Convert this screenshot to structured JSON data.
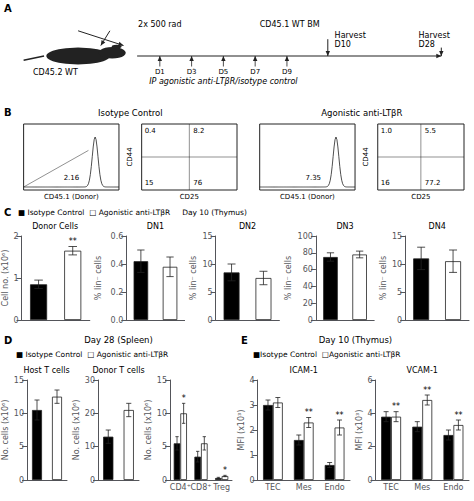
{
  "chart_data": [
    {
      "type": "schematic",
      "annotations": [
        "A",
        "CD45.2 WT",
        "2x 500 rad",
        "CD45.1 WT BM",
        "Harvest",
        "D10",
        "Harvest",
        "D28",
        "D1",
        "D3",
        "D5",
        "D7",
        "D9",
        "IP agonistic anti-LTβR/isotype control"
      ]
    },
    {
      "type": "schematic",
      "annotations": [
        "B",
        "Isotype Control",
        "Agonistic anti-LTβR",
        "2.16",
        "CD45.1 (Donor)",
        "0.4",
        "8.2",
        "15",
        "76",
        "CD44",
        "CD25",
        "7.35",
        "CD45.1 (Donor)",
        "1.0",
        "5.5",
        "16",
        "77.2",
        "CD44",
        "CD25"
      ]
    },
    {
      "type": "bar",
      "title": "Donor Cells",
      "annotations": [
        "C",
        "■ Isotype Control  □ Agonistic anti-LTβR     Day 10 (Thymus)"
      ],
      "categories": [
        null,
        null
      ],
      "values": [
        0.85,
        1.65
      ],
      "errors": [
        0.1,
        0.1
      ],
      "colors": [
        "#000000",
        "#ffffff"
      ],
      "significance": [
        null,
        "**"
      ],
      "ylabel": "Cell no. (x10⁶)",
      "ylim": [
        0,
        2
      ],
      "yticks": [
        0,
        1,
        2
      ],
      "grid": false
    },
    {
      "type": "bar",
      "title": "DN1",
      "categories": [
        null,
        null
      ],
      "values": [
        0.42,
        0.38
      ],
      "errors": [
        0.08,
        0.07
      ],
      "colors": [
        "#000000",
        "#ffffff"
      ],
      "ylabel": "% lin⁻ cells",
      "ylim": [
        0.0,
        0.6
      ],
      "yticks": [
        {
          "value": 0.0,
          "label": "0.0"
        },
        0.2,
        0.4,
        0.6
      ],
      "grid": false
    },
    {
      "type": "bar",
      "title": "DN2",
      "categories": [
        null,
        null
      ],
      "values": [
        8.5,
        7.5
      ],
      "errors": [
        1.5,
        1.2
      ],
      "colors": [
        "#000000",
        "#ffffff"
      ],
      "ylabel": "% lin⁻ cells",
      "ylim": [
        0,
        15
      ],
      "yticks": [
        0,
        5,
        10,
        15
      ],
      "grid": false
    },
    {
      "type": "bar",
      "title": "DN3",
      "categories": [
        null,
        null
      ],
      "values": [
        75,
        78
      ],
      "errors": [
        5,
        4
      ],
      "colors": [
        "#000000",
        "#ffffff"
      ],
      "ylabel": "% lin⁻ cells",
      "ylim": [
        0,
        100
      ],
      "yticks": [
        0,
        20,
        40,
        60,
        80,
        100
      ],
      "grid": false
    },
    {
      "type": "bar",
      "title": "DN4",
      "categories": [
        null,
        null
      ],
      "values": [
        11,
        10.5
      ],
      "errors": [
        2,
        2
      ],
      "colors": [
        "#000000",
        "#ffffff"
      ],
      "ylabel": "% lin⁻ cells",
      "ylim": [
        0,
        15
      ],
      "yticks": [
        0,
        5,
        10,
        15
      ],
      "grid": false
    },
    {
      "type": "bar",
      "title": "Host T cells",
      "annotations": [
        "D",
        "Day 28 (Spleen)",
        "■ Isotype Control  □ Agonistic anti-LTβR"
      ],
      "categories": [
        null,
        null
      ],
      "values": [
        10.5,
        12.5
      ],
      "errors": [
        1.5,
        1.0
      ],
      "colors": [
        "#000000",
        "#ffffff"
      ],
      "ylabel": "No. cells (x10⁶)",
      "ylim": [
        0,
        15
      ],
      "yticks": [
        0,
        5,
        10,
        15
      ],
      "grid": false
    },
    {
      "type": "bar",
      "title": "Donor T cells",
      "categories": [
        null,
        null
      ],
      "values": [
        13.0,
        21.0
      ],
      "errors": [
        2.0,
        2.0
      ],
      "colors": [
        "#000000",
        "#ffffff"
      ],
      "ylabel": "No. cells (x10⁶)",
      "ylim": [
        0,
        30
      ],
      "yticks": [
        0,
        10,
        20,
        30
      ],
      "grid": false
    },
    {
      "type": "bar",
      "categories": [
        "CD4⁺",
        "CD8⁺",
        "Treg"
      ],
      "series": [
        {
          "color": "#000000",
          "values": [
            5.5,
            3.5,
            0.3
          ],
          "errors": [
            1.0,
            0.8,
            0.1
          ]
        },
        {
          "color": "#ffffff",
          "values": [
            10.0,
            5.5,
            0.6
          ],
          "errors": [
            1.5,
            1.0,
            0.1
          ],
          "significance": [
            "*",
            null,
            "*"
          ]
        }
      ],
      "ylabel": "No. cells (x10⁶)",
      "ylim": [
        0,
        15
      ],
      "yticks": [
        0,
        5,
        10,
        15
      ],
      "grid": false
    },
    {
      "type": "bar",
      "title": "ICAM-1",
      "annotations": [
        "E",
        "Day 10 (Thymus)",
        "■Isotype Control  □Agonistic anti-LTβR"
      ],
      "categories": [
        "TEC",
        "Mes",
        "Endo"
      ],
      "series": [
        {
          "color": "#000000",
          "values": [
            3.0,
            1.6,
            0.6
          ],
          "errors": [
            0.2,
            0.2,
            0.1
          ]
        },
        {
          "color": "#ffffff",
          "values": [
            3.1,
            2.3,
            2.1
          ],
          "errors": [
            0.2,
            0.2,
            0.3
          ],
          "significance": [
            null,
            "**",
            "**"
          ]
        }
      ],
      "ylabel": "MFI (x10³)",
      "ylim": [
        0,
        4
      ],
      "yticks": [
        0,
        1,
        2,
        3,
        4
      ],
      "grid": false
    },
    {
      "type": "bar",
      "title": "VCAM-1",
      "categories": [
        "TEC",
        "Mes",
        "Endo"
      ],
      "series": [
        {
          "color": "#000000",
          "values": [
            3.8,
            3.2,
            2.7
          ],
          "errors": [
            0.3,
            0.3,
            0.3
          ]
        },
        {
          "color": "#ffffff",
          "values": [
            3.8,
            4.8,
            3.3
          ],
          "errors": [
            0.3,
            0.3,
            0.3
          ],
          "significance": [
            "**",
            "**",
            "**"
          ]
        }
      ],
      "ylabel": "MFI (x10³)",
      "ylim": [
        0,
        6
      ],
      "yticks": [
        0,
        2,
        4,
        6
      ],
      "grid": false
    }
  ]
}
